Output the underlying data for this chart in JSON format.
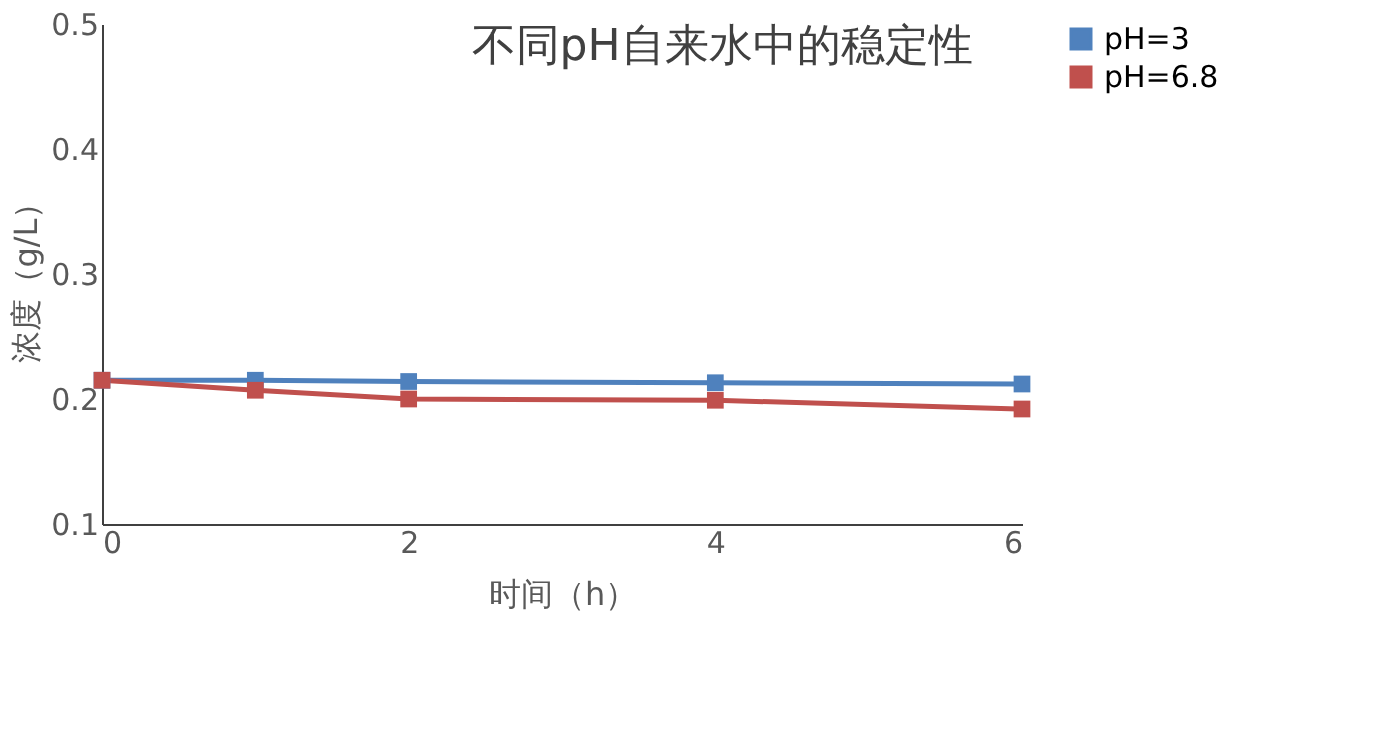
{
  "chart_data": {
    "type": "line",
    "title": "不同pH自来水中的稳定性",
    "xlabel": "时间（h）",
    "ylabel": "浓度（g/L）",
    "x": [
      0,
      1,
      2,
      4,
      6
    ],
    "series": [
      {
        "name": "pH=3",
        "color": "#4f81bd",
        "values": [
          0.215,
          0.215,
          0.214,
          0.213,
          0.212
        ]
      },
      {
        "name": "pH=6.8",
        "color": "#c0504d",
        "values": [
          0.215,
          0.207,
          0.2,
          0.199,
          0.192
        ]
      }
    ],
    "xlim": [
      0,
      6
    ],
    "xticks": [
      0,
      2,
      4,
      6
    ],
    "ylim": [
      0.1,
      0.5
    ],
    "yticks": [
      0.1,
      0.2,
      0.3,
      0.4,
      0.5
    ],
    "grid": false,
    "legend": "right",
    "marker": "square",
    "line_style": "solid"
  }
}
